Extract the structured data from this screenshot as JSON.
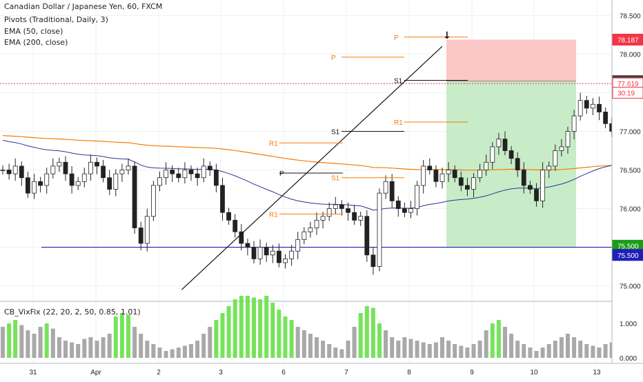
{
  "header": {
    "title": "Canadian Dollar / Japanese Yen, 60, FXCM",
    "indicators": [
      "Pivots (Traditional, Daily, 3)",
      "EMA (50, close)",
      "EMA (200, close)"
    ],
    "subpane_title": "CB_VixFix (22, 20, 2, 50, 0.85, 1.01)"
  },
  "colors": {
    "up": "#26a69a",
    "down": "#ef5350",
    "candle_body_up": "#ffffff",
    "candle_body_down": "#222222",
    "ema50": "#283593",
    "ema200": "#f57c00",
    "pivot": "#f57c00",
    "support_line": "#1f1fb8",
    "target_zone": "#c8ecc8",
    "stop_zone": "#fbc7c7",
    "vix_bar": "#a9a9a9",
    "vix_high": "#76e35a"
  },
  "price_axis": {
    "ticks": [
      "78.500",
      "78.000",
      "77.500",
      "77.000",
      "76.500",
      "76.000",
      "75.500",
      "75.000"
    ],
    "ymin": 74.8,
    "ymax": 78.7,
    "badges": [
      {
        "label": "78.187",
        "value": 78.187,
        "bg": "#f23645"
      },
      {
        "label": "77.650",
        "value": 77.65,
        "bg": "#444444"
      },
      {
        "label": "77.619",
        "value": 77.619,
        "bg": "#ffffff",
        "fg": "#f23645",
        "border": "#f23645"
      },
      {
        "label": "30:19",
        "value": 77.5,
        "bg": "#ffffff",
        "fg": "#f23645",
        "border": "#f23645"
      },
      {
        "label": "75.500",
        "value": 75.52,
        "bg": "#1a9c1a"
      },
      {
        "label": "75.500",
        "value": 75.4,
        "bg": "#1f1fb8"
      }
    ]
  },
  "vix_axis": {
    "ticks": [
      "1.000",
      "0.000"
    ]
  },
  "time_axis": {
    "labels": [
      "31",
      "Apr",
      "2",
      "3",
      "6",
      "7",
      "8",
      "9",
      "10",
      "13"
    ]
  },
  "chart_data": {
    "type": "candlestick",
    "title": "Canadian Dollar / Japanese Yen, 60, FXCM",
    "support_level": 75.5,
    "position": {
      "direction": "short",
      "entry": 77.65,
      "stop": 78.187,
      "target": 75.5
    },
    "last_price": 77.619,
    "pivot_labels": [
      "R1",
      "P",
      "S1",
      "R1",
      "P",
      "S1",
      "R1",
      "P",
      "S1"
    ],
    "pivots": [
      {
        "label": "R1",
        "value": 76.85
      },
      {
        "label": "P",
        "value": 76.46
      },
      {
        "label": "S1",
        "value": 76.4
      },
      {
        "label": "S1",
        "value": 75.93
      },
      {
        "label": "R1",
        "value": 77.96
      },
      {
        "label": "P",
        "value": 77.0
      },
      {
        "label": "S1",
        "value": 77.12
      },
      {
        "label": "R1",
        "value": 78.22
      },
      {
        "label": "P",
        "value": 77.66
      }
    ],
    "trendline": {
      "from": {
        "x": 28.5,
        "y": 74.95
      },
      "to": {
        "x": 70.0,
        "y": 78.1
      }
    },
    "arrow": "down",
    "vixfix_levels": [
      1.0,
      0.0
    ]
  }
}
